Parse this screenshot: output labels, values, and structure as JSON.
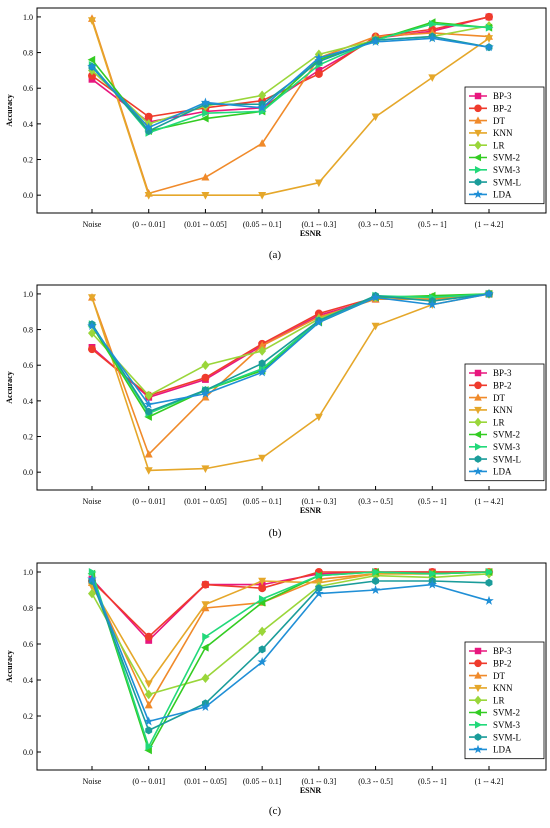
{
  "figure": {
    "background": "#ffffff",
    "series_colors": {
      "BP-3": "#e8177e",
      "BP-2": "#ef3b2c",
      "DT": "#f08a2a",
      "KNN": "#e5a72a",
      "LR": "#9ad63a",
      "SVM-2": "#33cc22",
      "SVM-3": "#22d97a",
      "SVM-L": "#1a9c9a",
      "LDA": "#1f8fd6"
    },
    "series_markers": {
      "BP-3": "square",
      "BP-2": "circle",
      "DT": "triangle-up",
      "KNN": "triangle-down",
      "LR": "diamond",
      "SVM-2": "triangle-left",
      "SVM-3": "triangle-right",
      "SVM-L": "hexagon",
      "LDA": "star"
    }
  },
  "chart_data": [
    {
      "type": "line",
      "caption": "(a)",
      "xlabel": "ESNR",
      "ylabel": "Accuracy",
      "ylim": [
        -0.1,
        1.05
      ],
      "yticks": [
        0.0,
        0.2,
        0.4,
        0.6,
        0.8,
        1.0
      ],
      "ytick_labels": [
        "0.0",
        "0.2",
        "0.4",
        "0.6",
        "0.8",
        "1.0"
      ],
      "grid": false,
      "legend_position": "right",
      "categories": [
        "Noise",
        "(0 -- 0.01]",
        "(0.01 -- 0.05]",
        "(0.05 -- 0.1]",
        "(0.1 -- 0.3]",
        "(0.3 -- 0.5]",
        "(0.5 -- 1]",
        "(1 -- 4.2]"
      ],
      "series": [
        {
          "name": "BP-3",
          "values": [
            0.65,
            0.41,
            0.47,
            0.49,
            0.7,
            0.88,
            0.92,
            1.0
          ]
        },
        {
          "name": "BP-2",
          "values": [
            0.67,
            0.44,
            0.49,
            0.53,
            0.68,
            0.89,
            0.93,
            1.0
          ]
        },
        {
          "name": "DT",
          "values": [
            0.99,
            0.01,
            0.1,
            0.29,
            0.77,
            0.89,
            0.91,
            0.89
          ]
        },
        {
          "name": "KNN",
          "values": [
            0.98,
            0.0,
            0.0,
            0.0,
            0.07,
            0.44,
            0.66,
            0.88
          ]
        },
        {
          "name": "LR",
          "values": [
            0.7,
            0.4,
            0.5,
            0.56,
            0.79,
            0.87,
            0.89,
            0.95
          ]
        },
        {
          "name": "SVM-2",
          "values": [
            0.76,
            0.36,
            0.43,
            0.47,
            0.76,
            0.87,
            0.97,
            0.94
          ]
        },
        {
          "name": "SVM-3",
          "values": [
            0.73,
            0.35,
            0.46,
            0.47,
            0.73,
            0.87,
            0.96,
            0.94
          ]
        },
        {
          "name": "SVM-L",
          "values": [
            0.72,
            0.36,
            0.51,
            0.51,
            0.75,
            0.87,
            0.89,
            0.83
          ]
        },
        {
          "name": "LDA",
          "values": [
            0.72,
            0.38,
            0.52,
            0.49,
            0.77,
            0.86,
            0.88,
            0.83
          ]
        }
      ]
    },
    {
      "type": "line",
      "caption": "(b)",
      "xlabel": "ESNR",
      "ylabel": "Accuracy",
      "ylim": [
        -0.1,
        1.05
      ],
      "yticks": [
        0.0,
        0.2,
        0.4,
        0.6,
        0.8,
        1.0
      ],
      "ytick_labels": [
        "0.0",
        "0.2",
        "0.4",
        "0.6",
        "0.8",
        "1.0"
      ],
      "grid": false,
      "legend_position": "right",
      "categories": [
        "Noise",
        "(0 -- 0.01]",
        "(0.01 -- 0.05]",
        "(0.05 -- 0.1]",
        "(0.1 -- 0.3]",
        "(0.3 -- 0.5]",
        "(0.5 -- 1]",
        "(1 -- 4.2]"
      ],
      "series": [
        {
          "name": "BP-3",
          "values": [
            0.7,
            0.42,
            0.52,
            0.71,
            0.88,
            0.97,
            0.97,
            1.0
          ]
        },
        {
          "name": "BP-2",
          "values": [
            0.69,
            0.43,
            0.53,
            0.72,
            0.89,
            0.98,
            0.98,
            1.0
          ]
        },
        {
          "name": "DT",
          "values": [
            0.98,
            0.1,
            0.42,
            0.71,
            0.87,
            0.97,
            0.97,
            1.0
          ]
        },
        {
          "name": "KNN",
          "values": [
            0.98,
            0.01,
            0.02,
            0.08,
            0.31,
            0.82,
            0.94,
            1.0
          ]
        },
        {
          "name": "LR",
          "values": [
            0.78,
            0.43,
            0.6,
            0.68,
            0.86,
            0.98,
            0.98,
            1.0
          ]
        },
        {
          "name": "SVM-2",
          "values": [
            0.82,
            0.31,
            0.46,
            0.57,
            0.84,
            0.98,
            0.99,
            1.0
          ]
        },
        {
          "name": "SVM-3",
          "values": [
            0.83,
            0.33,
            0.46,
            0.58,
            0.85,
            0.99,
            0.98,
            1.0
          ]
        },
        {
          "name": "SVM-L",
          "values": [
            0.83,
            0.34,
            0.46,
            0.61,
            0.85,
            0.99,
            0.96,
            1.0
          ]
        },
        {
          "name": "LDA",
          "values": [
            0.82,
            0.38,
            0.44,
            0.56,
            0.84,
            0.98,
            0.94,
            1.0
          ]
        }
      ]
    },
    {
      "type": "line",
      "caption": "(c)",
      "xlabel": "ESNR",
      "ylabel": "Accuracy",
      "ylim": [
        -0.1,
        1.05
      ],
      "yticks": [
        0.0,
        0.2,
        0.4,
        0.6,
        0.8,
        1.0
      ],
      "ytick_labels": [
        "0.0",
        "0.2",
        "0.4",
        "0.6",
        "0.8",
        "1.0"
      ],
      "grid": false,
      "legend_position": "right",
      "categories": [
        "Noise",
        "(0 -- 0.01]",
        "(0.01 -- 0.05]",
        "(0.05 -- 0.1]",
        "(0.1 -- 0.3]",
        "(0.3 -- 0.5]",
        "(0.5 -- 1]",
        "(1 -- 4.2]"
      ],
      "series": [
        {
          "name": "BP-3",
          "values": [
            0.96,
            0.62,
            0.93,
            0.93,
            0.99,
            1.0,
            1.0,
            1.0
          ]
        },
        {
          "name": "BP-2",
          "values": [
            0.95,
            0.64,
            0.93,
            0.91,
            1.0,
            1.0,
            1.0,
            1.0
          ]
        },
        {
          "name": "DT",
          "values": [
            0.94,
            0.26,
            0.8,
            0.83,
            0.96,
            0.99,
            0.99,
            1.0
          ]
        },
        {
          "name": "KNN",
          "values": [
            0.92,
            0.38,
            0.82,
            0.95,
            0.94,
            0.99,
            0.99,
            1.0
          ]
        },
        {
          "name": "LR",
          "values": [
            0.88,
            0.32,
            0.41,
            0.67,
            0.92,
            0.98,
            0.97,
            0.99
          ]
        },
        {
          "name": "SVM-2",
          "values": [
            0.99,
            0.01,
            0.58,
            0.83,
            0.98,
            1.0,
            0.99,
            1.0
          ]
        },
        {
          "name": "SVM-3",
          "values": [
            1.0,
            0.03,
            0.64,
            0.85,
            0.98,
            1.0,
            0.99,
            1.0
          ]
        },
        {
          "name": "SVM-L",
          "values": [
            0.95,
            0.12,
            0.27,
            0.57,
            0.91,
            0.95,
            0.95,
            0.94
          ]
        },
        {
          "name": "LDA",
          "values": [
            0.96,
            0.17,
            0.25,
            0.5,
            0.88,
            0.9,
            0.93,
            0.84
          ]
        }
      ]
    }
  ]
}
